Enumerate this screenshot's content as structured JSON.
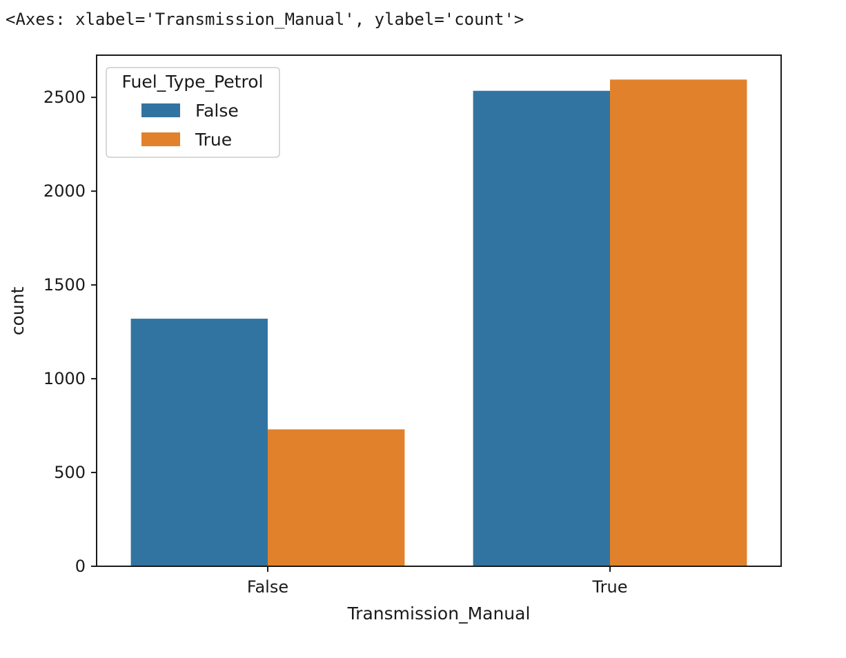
{
  "output_repr": "<Axes: xlabel='Transmission_Manual', ylabel='count'>",
  "chart_data": {
    "type": "bar",
    "categories": [
      "False",
      "True"
    ],
    "series": [
      {
        "name": "False",
        "values": [
          1320,
          2535
        ],
        "color": "#3274a1"
      },
      {
        "name": "True",
        "values": [
          730,
          2595
        ],
        "color": "#e1812c"
      }
    ],
    "xlabel": "Transmission_Manual",
    "ylabel": "count",
    "ylim": [
      0,
      2725
    ],
    "yticks": [
      0,
      500,
      1000,
      1500,
      2000,
      2500
    ],
    "legend": {
      "title": "Fuel_Type_Petrol",
      "placement": "upper-left"
    },
    "grid": false
  }
}
